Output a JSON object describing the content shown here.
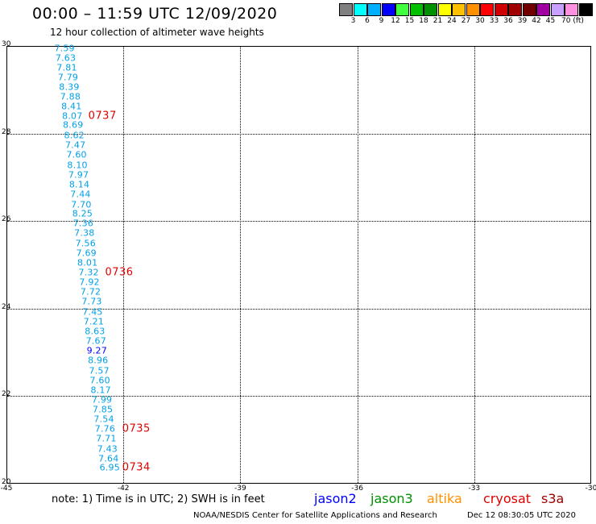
{
  "header": {
    "title": "00:00 – 11:59 UTC 12/09/2020",
    "subtitle": "12 hour collection of altimeter wave heights"
  },
  "color_scale": {
    "colors": [
      "#808080",
      "#00ffff",
      "#00b0ff",
      "#0000ff",
      "#40ff40",
      "#00c000",
      "#009000",
      "#ffff00",
      "#ffc000",
      "#ff9000",
      "#ff0000",
      "#d00000",
      "#a00000",
      "#700000",
      "#a000a0",
      "#c8a0ff",
      "#ff90e0",
      "#000000"
    ],
    "labels": [
      "3",
      "6",
      "9",
      "12",
      "15",
      "18",
      "21",
      "24",
      "27",
      "30",
      "33",
      "36",
      "39",
      "42",
      "45",
      "70 (ft)"
    ]
  },
  "map": {
    "x_ticks": [
      "-45",
      "-42",
      "-39",
      "-36",
      "-33",
      "-30"
    ],
    "y_ticks": [
      "30",
      "28",
      "26",
      "24",
      "22",
      "20"
    ],
    "swh_track": [
      {
        "lon": -43.51,
        "lat": 29.95,
        "value": "7.59",
        "band": "6-9"
      },
      {
        "lon": -43.48,
        "lat": 29.73,
        "value": "7.63",
        "band": "6-9"
      },
      {
        "lon": -43.45,
        "lat": 29.51,
        "value": "7.81",
        "band": "6-9"
      },
      {
        "lon": -43.42,
        "lat": 29.29,
        "value": "7.79",
        "band": "6-9"
      },
      {
        "lon": -43.39,
        "lat": 29.06,
        "value": "8.39",
        "band": "6-9"
      },
      {
        "lon": -43.36,
        "lat": 28.84,
        "value": "7.88",
        "band": "6-9"
      },
      {
        "lon": -43.33,
        "lat": 28.62,
        "value": "8.41",
        "band": "6-9"
      },
      {
        "lon": -43.31,
        "lat": 28.39,
        "value": "8.07",
        "band": "6-9"
      },
      {
        "lon": -43.29,
        "lat": 28.19,
        "value": "8.69",
        "band": "6-9"
      },
      {
        "lon": -43.26,
        "lat": 27.96,
        "value": "8.62",
        "band": "6-9"
      },
      {
        "lon": -43.23,
        "lat": 27.74,
        "value": "7.47",
        "band": "6-9"
      },
      {
        "lon": -43.2,
        "lat": 27.52,
        "value": "7.60",
        "band": "6-9"
      },
      {
        "lon": -43.18,
        "lat": 27.28,
        "value": "8.10",
        "band": "6-9"
      },
      {
        "lon": -43.15,
        "lat": 27.06,
        "value": "7.97",
        "band": "6-9"
      },
      {
        "lon": -43.13,
        "lat": 26.83,
        "value": "8.14",
        "band": "6-9"
      },
      {
        "lon": -43.1,
        "lat": 26.61,
        "value": "7.44",
        "band": "6-9"
      },
      {
        "lon": -43.08,
        "lat": 26.38,
        "value": "7.70",
        "band": "6-9"
      },
      {
        "lon": -43.05,
        "lat": 26.17,
        "value": "8.25",
        "band": "6-9"
      },
      {
        "lon": -43.03,
        "lat": 25.94,
        "value": "7.36",
        "band": "6-9"
      },
      {
        "lon": -43.0,
        "lat": 25.72,
        "value": "7.38",
        "band": "6-9"
      },
      {
        "lon": -42.97,
        "lat": 25.49,
        "value": "7.56",
        "band": "6-9"
      },
      {
        "lon": -42.95,
        "lat": 25.27,
        "value": "7.69",
        "band": "6-9"
      },
      {
        "lon": -42.92,
        "lat": 25.04,
        "value": "8.01",
        "band": "6-9"
      },
      {
        "lon": -42.89,
        "lat": 24.83,
        "value": "7.32",
        "band": "6-9"
      },
      {
        "lon": -42.87,
        "lat": 24.6,
        "value": "7.92",
        "band": "6-9"
      },
      {
        "lon": -42.84,
        "lat": 24.38,
        "value": "7.72",
        "band": "6-9"
      },
      {
        "lon": -42.81,
        "lat": 24.16,
        "value": "7.73",
        "band": "6-9"
      },
      {
        "lon": -42.79,
        "lat": 23.93,
        "value": "7.45",
        "band": "6-9"
      },
      {
        "lon": -42.76,
        "lat": 23.7,
        "value": "7.21",
        "band": "6-9"
      },
      {
        "lon": -42.73,
        "lat": 23.48,
        "value": "8.63",
        "band": "6-9"
      },
      {
        "lon": -42.7,
        "lat": 23.26,
        "value": "7.67",
        "band": "6-9"
      },
      {
        "lon": -42.68,
        "lat": 23.03,
        "value": "9.27",
        "band": "9-12"
      },
      {
        "lon": -42.65,
        "lat": 22.81,
        "value": "8.96",
        "band": "6-9"
      },
      {
        "lon": -42.62,
        "lat": 22.58,
        "value": "7.57",
        "band": "6-9"
      },
      {
        "lon": -42.6,
        "lat": 22.36,
        "value": "7.60",
        "band": "6-9"
      },
      {
        "lon": -42.58,
        "lat": 22.14,
        "value": "8.17",
        "band": "6-9"
      },
      {
        "lon": -42.55,
        "lat": 21.91,
        "value": "7.99",
        "band": "6-9"
      },
      {
        "lon": -42.53,
        "lat": 21.69,
        "value": "7.85",
        "band": "6-9"
      },
      {
        "lon": -42.5,
        "lat": 21.47,
        "value": "7.54",
        "band": "6-9"
      },
      {
        "lon": -42.47,
        "lat": 21.25,
        "value": "7.76",
        "band": "6-9"
      },
      {
        "lon": -42.44,
        "lat": 21.03,
        "value": "7.71",
        "band": "6-9"
      },
      {
        "lon": -42.41,
        "lat": 20.8,
        "value": "7.43",
        "band": "6-9"
      },
      {
        "lon": -42.38,
        "lat": 20.58,
        "value": "7.64",
        "band": "6-9"
      },
      {
        "lon": -42.35,
        "lat": 20.37,
        "value": "6.95",
        "band": "6-9"
      }
    ],
    "time_labels": [
      {
        "lon": -42.9,
        "lat": 28.39,
        "text": "0737"
      },
      {
        "lon": -42.47,
        "lat": 24.83,
        "text": "0736"
      },
      {
        "lon": -42.03,
        "lat": 21.25,
        "text": "0735"
      },
      {
        "lon": -42.03,
        "lat": 20.37,
        "text": "0734"
      }
    ]
  },
  "legend": {
    "note": "note:  1) Time is in UTC;  2) SWH is in feet",
    "satellites": [
      {
        "name": "jason2",
        "color": "#0000ff"
      },
      {
        "name": "jason3",
        "color": "#009000"
      },
      {
        "name": "altika",
        "color": "#ff9000"
      },
      {
        "name": "cryosat",
        "color": "#e00000"
      },
      {
        "name": "s3a",
        "color": "#a00000"
      }
    ]
  },
  "footer": {
    "credit": "NOAA/NESDIS Center for Satellite Applications and Research",
    "timestamp": "Dec 12 08:30:05 UTC 2020"
  }
}
